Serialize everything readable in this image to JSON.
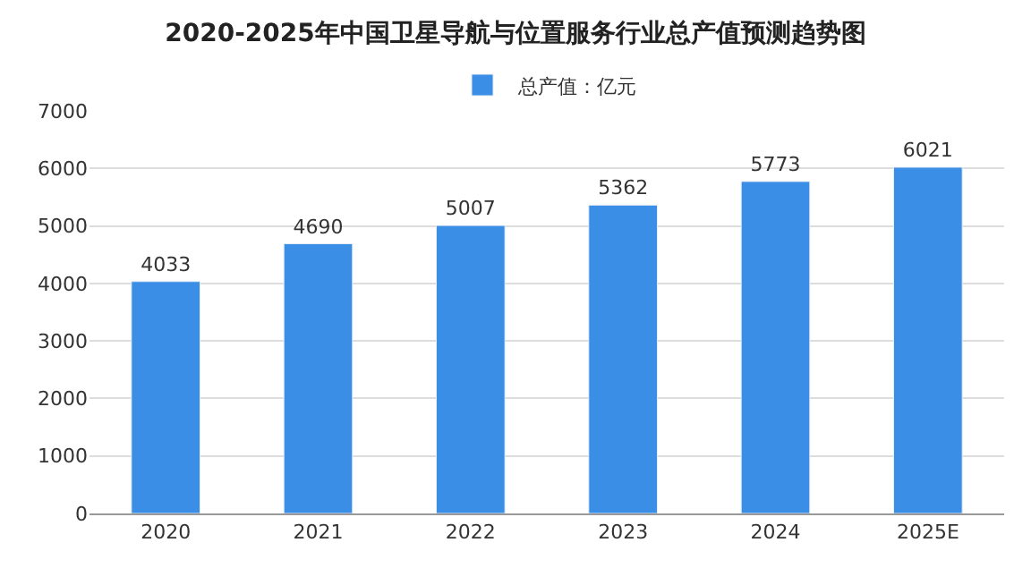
{
  "chart_data": {
    "type": "bar",
    "title": "2020-2025年中国卫星导航与位置服务行业总产值预测趋势图",
    "categories": [
      "2020",
      "2021",
      "2022",
      "2023",
      "2024",
      "2025E"
    ],
    "series": [
      {
        "name": "总产值：亿元",
        "color": "#3a8ee6",
        "values": [
          4033,
          4690,
          5007,
          5362,
          5773,
          6021
        ]
      }
    ],
    "ylim": [
      0,
      7000
    ],
    "yticks": [
      0,
      1000,
      2000,
      3000,
      4000,
      5000,
      6000,
      7000
    ],
    "grid": "y",
    "legend": "top",
    "data_labels": true
  }
}
